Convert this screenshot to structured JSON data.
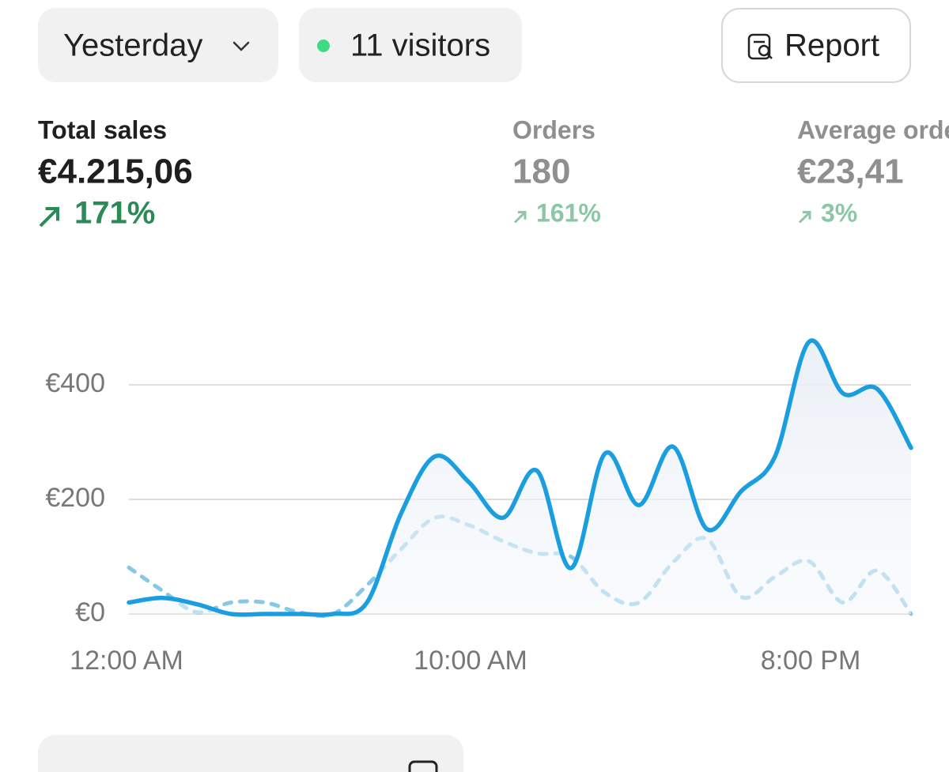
{
  "controls": {
    "date_range": "Yesterday",
    "visitors": "11 visitors",
    "report": "Report"
  },
  "metrics": [
    {
      "label": "Total sales",
      "value": "€4.215,06",
      "change": "171%"
    },
    {
      "label": "Orders",
      "value": "180",
      "change": "161%"
    },
    {
      "label": "Average order value",
      "value": "€23,41",
      "change": "3%"
    }
  ],
  "chart_data": {
    "type": "line",
    "x": [
      0,
      1,
      2,
      3,
      4,
      5,
      6,
      7,
      8,
      9,
      10,
      11,
      12,
      13,
      14,
      15,
      16,
      17,
      18,
      19,
      20,
      21,
      22,
      23
    ],
    "series": [
      {
        "color": "#1a9ee0",
        "values": [
          20,
          28,
          17,
          0,
          0,
          0,
          0,
          20,
          175,
          275,
          230,
          168,
          250,
          80,
          280,
          190,
          292,
          148,
          214,
          275,
          475,
          385,
          393,
          290
        ]
      },
      {
        "color": "#86c9e6",
        "style": "dashed",
        "values": [
          81,
          40,
          3,
          20,
          20,
          3,
          0,
          50,
          113,
          168,
          155,
          127,
          106,
          100,
          37,
          20,
          90,
          131,
          30,
          65,
          92,
          20,
          76,
          0
        ]
      }
    ],
    "xlim": [
      0,
      23
    ],
    "ylim": [
      0,
      500
    ],
    "xticks": [
      {
        "value": 0,
        "label": "12:00 AM"
      },
      {
        "value": 10,
        "label": "10:00 AM"
      },
      {
        "value": 20,
        "label": "8:00 PM"
      }
    ],
    "yticks": [
      {
        "value": 0,
        "label": "€0"
      },
      {
        "value": 200,
        "label": "€200"
      },
      {
        "value": 400,
        "label": "€400"
      }
    ],
    "grid": true
  }
}
